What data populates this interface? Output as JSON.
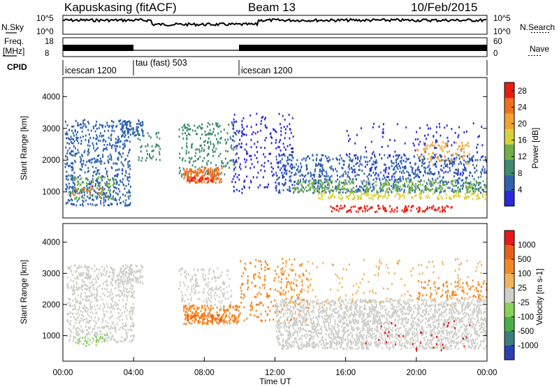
{
  "chart_data": [
    {
      "type": "header",
      "title": {
        "radar": "Kapuskasing (fitACF)",
        "beam": "Beam 13",
        "date": "10/Feb/2015"
      },
      "nsky_panel": {
        "left_label": "N.Sky",
        "right_label": "N.Search",
        "yticks": [
          "10^5",
          "10^0"
        ]
      },
      "freq_panel": {
        "left_label_line1": "Freq.",
        "left_label_line2": "[MHz]",
        "left_ticks": [
          "18",
          "8"
        ],
        "right_label": "Nave",
        "right_ticks": [
          "60",
          "0"
        ]
      },
      "cpid_panel": {
        "label": "CPID",
        "segments": [
          {
            "name": "icescan 1200",
            "start_ut": 0,
            "end_ut": 4
          },
          {
            "name": "tau (fast) 503",
            "start_ut": 4,
            "end_ut": 10
          },
          {
            "name": "icescan 1200",
            "start_ut": 10,
            "end_ut": 24
          }
        ]
      }
    },
    {
      "type": "heatmap",
      "ylabel": "Slant Range [km]",
      "yticks": [
        1000,
        2000,
        3000,
        4000
      ],
      "ylim": [
        180,
        4600
      ],
      "colorbar": {
        "label": "Power [dB]",
        "ticks": [
          4,
          8,
          12,
          16,
          20,
          24,
          28
        ],
        "range": [
          0,
          30
        ],
        "colors": [
          "#2a2ad8",
          "#2f62ae",
          "#3e8a73",
          "#6fb04a",
          "#d8d23a",
          "#f0a232",
          "#f07020",
          "#e81e14"
        ]
      }
    },
    {
      "type": "heatmap",
      "ylabel": "Slant Range [km]",
      "yticks": [
        1000,
        2000,
        3000,
        4000
      ],
      "ylim": [
        180,
        4600
      ],
      "colorbar": {
        "label": "Velocity [m s-1]",
        "ticks": [
          "1000",
          "500",
          "100",
          "25",
          "-25",
          "-100",
          "-500",
          "-1000"
        ],
        "colors": [
          "#2c3fae",
          "#3a7e7e",
          "#48b04a",
          "#8cd05a",
          "#cfcfca",
          "#f2b45a",
          "#f08a28",
          "#e86018",
          "#e81818"
        ]
      }
    }
  ],
  "x_axis": {
    "label": "Time UT",
    "ticks": [
      "00:00",
      "04:00",
      "08:00",
      "12:00",
      "16:00",
      "20:00",
      "00:00"
    ]
  }
}
